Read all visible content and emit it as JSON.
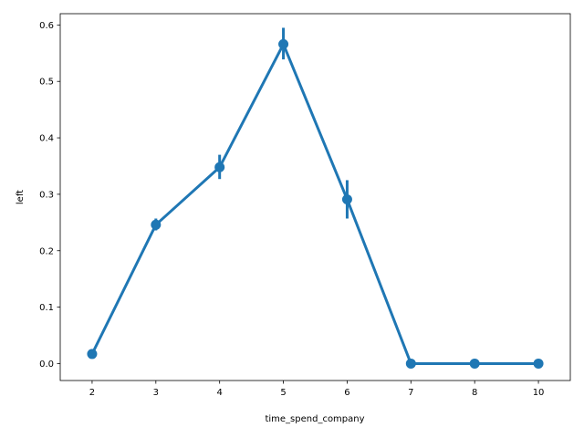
{
  "chart_data": {
    "type": "line",
    "title": "",
    "xlabel": "time_spend_company",
    "ylabel": "left",
    "categories": [
      "2",
      "3",
      "4",
      "5",
      "6",
      "7",
      "8",
      "10"
    ],
    "series": [
      {
        "values": [
          0.017,
          0.246,
          0.348,
          0.566,
          0.291,
          0.0,
          0.0,
          0.0
        ],
        "ci_low": [
          0.012,
          0.236,
          0.327,
          0.539,
          0.257,
          0.0,
          0.0,
          0.0
        ],
        "ci_high": [
          0.022,
          0.257,
          0.37,
          0.595,
          0.325,
          0.0,
          0.0,
          0.0
        ]
      }
    ],
    "ylim": [
      -0.03,
      0.62
    ],
    "yticks": [
      0.0,
      0.1,
      0.2,
      0.3,
      0.4,
      0.5,
      0.6
    ],
    "ytick_labels": [
      "0.0",
      "0.1",
      "0.2",
      "0.3",
      "0.4",
      "0.5",
      "0.6"
    ],
    "grid": false,
    "legend": "none",
    "color": "#1f77b4"
  }
}
